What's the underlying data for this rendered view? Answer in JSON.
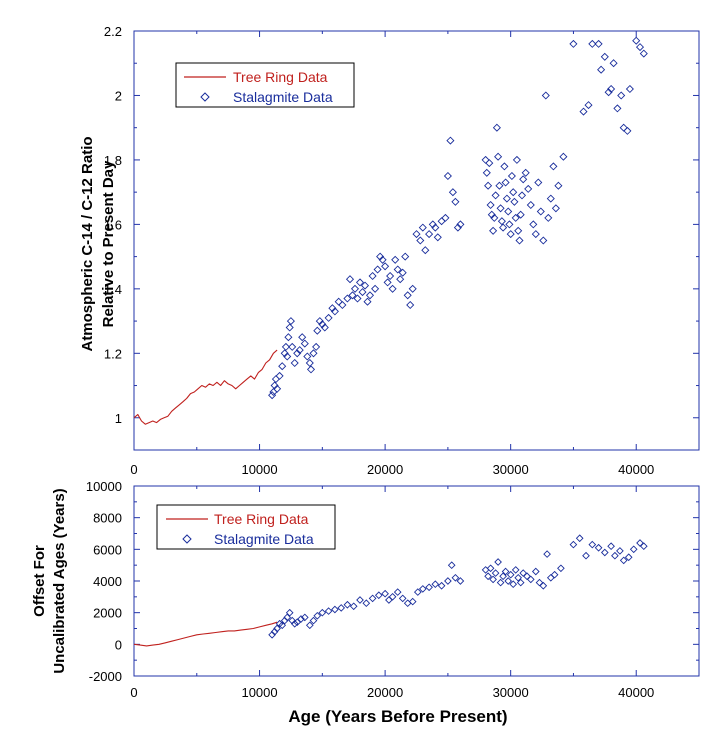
{
  "colors": {
    "tree": "#c0211e",
    "stalagmite": "#1a2e9c",
    "frame": "#2233aa",
    "tick_text": "#000000"
  },
  "chart_data": [
    {
      "type": "scatter",
      "title": "",
      "xlabel": "",
      "ylabel": "Atmospheric C-14 / C-12 Ratio",
      "ylabel2": "Relative to Present Day",
      "xlim": [
        0,
        45000
      ],
      "ylim": [
        0.9,
        2.2
      ],
      "xticks": [
        0,
        10000,
        20000,
        30000,
        40000
      ],
      "yticks": [
        1,
        1.2,
        1.4,
        1.6,
        1.8,
        2,
        2.2
      ],
      "ytick_labels": [
        "1",
        "1.2",
        "1.4",
        "1.6",
        "1.8",
        "2",
        "2.2"
      ],
      "grid": false,
      "legend_position": "top-left",
      "legend": [
        "Tree Ring Data",
        "Stalagmite Data"
      ],
      "series": [
        {
          "name": "Tree Ring Data",
          "kind": "line",
          "x": [
            0,
            300,
            600,
            900,
            1200,
            1500,
            1800,
            2100,
            2400,
            2700,
            3000,
            3300,
            3600,
            3900,
            4200,
            4500,
            4800,
            5100,
            5400,
            5700,
            6000,
            6300,
            6600,
            6900,
            7200,
            7500,
            7800,
            8100,
            8400,
            8700,
            9000,
            9300,
            9600,
            9900,
            10200,
            10500,
            10800,
            11100,
            11400
          ],
          "y": [
            1.0,
            1.01,
            0.99,
            0.98,
            0.985,
            0.99,
            0.985,
            0.995,
            1.0,
            1.005,
            1.02,
            1.03,
            1.04,
            1.05,
            1.06,
            1.075,
            1.08,
            1.09,
            1.1,
            1.095,
            1.105,
            1.1,
            1.11,
            1.1,
            1.115,
            1.105,
            1.1,
            1.09,
            1.1,
            1.11,
            1.12,
            1.13,
            1.12,
            1.14,
            1.15,
            1.17,
            1.18,
            1.2,
            1.21
          ]
        },
        {
          "name": "Stalagmite Data",
          "kind": "scatter",
          "points": [
            [
              11000,
              1.07
            ],
            [
              11100,
              1.08
            ],
            [
              11200,
              1.1
            ],
            [
              11300,
              1.12
            ],
            [
              11400,
              1.09
            ],
            [
              11600,
              1.13
            ],
            [
              11800,
              1.16
            ],
            [
              12000,
              1.2
            ],
            [
              12100,
              1.22
            ],
            [
              12200,
              1.19
            ],
            [
              12300,
              1.25
            ],
            [
              12400,
              1.28
            ],
            [
              12500,
              1.3
            ],
            [
              12600,
              1.22
            ],
            [
              12800,
              1.17
            ],
            [
              13000,
              1.2
            ],
            [
              13200,
              1.21
            ],
            [
              13400,
              1.25
            ],
            [
              13600,
              1.23
            ],
            [
              13800,
              1.19
            ],
            [
              14000,
              1.17
            ],
            [
              14100,
              1.15
            ],
            [
              14300,
              1.2
            ],
            [
              14500,
              1.22
            ],
            [
              14600,
              1.27
            ],
            [
              14800,
              1.3
            ],
            [
              15000,
              1.29
            ],
            [
              15200,
              1.28
            ],
            [
              15500,
              1.31
            ],
            [
              15800,
              1.34
            ],
            [
              16000,
              1.33
            ],
            [
              16300,
              1.36
            ],
            [
              16600,
              1.35
            ],
            [
              17000,
              1.37
            ],
            [
              17200,
              1.43
            ],
            [
              17400,
              1.38
            ],
            [
              17600,
              1.4
            ],
            [
              17800,
              1.37
            ],
            [
              18000,
              1.42
            ],
            [
              18200,
              1.39
            ],
            [
              18400,
              1.41
            ],
            [
              18600,
              1.36
            ],
            [
              18800,
              1.38
            ],
            [
              19000,
              1.44
            ],
            [
              19200,
              1.4
            ],
            [
              19400,
              1.46
            ],
            [
              19600,
              1.5
            ],
            [
              19800,
              1.49
            ],
            [
              20000,
              1.47
            ],
            [
              20200,
              1.42
            ],
            [
              20400,
              1.44
            ],
            [
              20600,
              1.4
            ],
            [
              20800,
              1.49
            ],
            [
              21000,
              1.46
            ],
            [
              21200,
              1.43
            ],
            [
              21400,
              1.45
            ],
            [
              21600,
              1.5
            ],
            [
              21800,
              1.38
            ],
            [
              22000,
              1.35
            ],
            [
              22200,
              1.4
            ],
            [
              22500,
              1.57
            ],
            [
              22800,
              1.55
            ],
            [
              23000,
              1.59
            ],
            [
              23200,
              1.52
            ],
            [
              23500,
              1.57
            ],
            [
              23800,
              1.6
            ],
            [
              24000,
              1.59
            ],
            [
              24200,
              1.56
            ],
            [
              24500,
              1.61
            ],
            [
              24800,
              1.62
            ],
            [
              25000,
              1.75
            ],
            [
              25200,
              1.86
            ],
            [
              25400,
              1.7
            ],
            [
              25600,
              1.67
            ],
            [
              25800,
              1.59
            ],
            [
              26000,
              1.6
            ],
            [
              28000,
              1.8
            ],
            [
              28100,
              1.76
            ],
            [
              28200,
              1.72
            ],
            [
              28300,
              1.79
            ],
            [
              28400,
              1.66
            ],
            [
              28500,
              1.63
            ],
            [
              28600,
              1.58
            ],
            [
              28700,
              1.62
            ],
            [
              28800,
              1.69
            ],
            [
              28900,
              1.9
            ],
            [
              29000,
              1.81
            ],
            [
              29100,
              1.72
            ],
            [
              29200,
              1.65
            ],
            [
              29300,
              1.61
            ],
            [
              29400,
              1.59
            ],
            [
              29500,
              1.78
            ],
            [
              29600,
              1.73
            ],
            [
              29700,
              1.68
            ],
            [
              29800,
              1.64
            ],
            [
              29900,
              1.6
            ],
            [
              30000,
              1.57
            ],
            [
              30100,
              1.75
            ],
            [
              30200,
              1.7
            ],
            [
              30300,
              1.67
            ],
            [
              30400,
              1.62
            ],
            [
              30500,
              1.8
            ],
            [
              30600,
              1.58
            ],
            [
              30700,
              1.55
            ],
            [
              30800,
              1.63
            ],
            [
              30900,
              1.69
            ],
            [
              31000,
              1.74
            ],
            [
              31200,
              1.76
            ],
            [
              31400,
              1.71
            ],
            [
              31600,
              1.66
            ],
            [
              31800,
              1.6
            ],
            [
              32000,
              1.57
            ],
            [
              32200,
              1.73
            ],
            [
              32400,
              1.64
            ],
            [
              32600,
              1.55
            ],
            [
              32800,
              2.0
            ],
            [
              33000,
              1.62
            ],
            [
              33200,
              1.68
            ],
            [
              33400,
              1.78
            ],
            [
              33600,
              1.65
            ],
            [
              33800,
              1.72
            ],
            [
              34200,
              1.81
            ],
            [
              35000,
              2.16
            ],
            [
              35800,
              1.95
            ],
            [
              36200,
              1.97
            ],
            [
              36500,
              2.16
            ],
            [
              37000,
              2.16
            ],
            [
              37200,
              2.08
            ],
            [
              37500,
              2.12
            ],
            [
              37800,
              2.01
            ],
            [
              38000,
              2.02
            ],
            [
              38200,
              2.1
            ],
            [
              38500,
              1.96
            ],
            [
              38800,
              2.0
            ],
            [
              39000,
              1.9
            ],
            [
              39300,
              1.89
            ],
            [
              39500,
              2.02
            ],
            [
              40000,
              2.17
            ],
            [
              40300,
              2.15
            ],
            [
              40600,
              2.13
            ]
          ]
        }
      ]
    },
    {
      "type": "scatter",
      "title": "",
      "xlabel": "Age (Years Before Present)",
      "ylabel": "Offset For",
      "ylabel2": "Uncalibrated Ages (Years)",
      "xlim": [
        0,
        45000
      ],
      "ylim": [
        -2000,
        10000
      ],
      "xticks": [
        0,
        10000,
        20000,
        30000,
        40000
      ],
      "yticks": [
        -2000,
        0,
        2000,
        4000,
        6000,
        8000,
        10000
      ],
      "grid": false,
      "legend_position": "top-left",
      "legend": [
        "Tree Ring Data",
        "Stalagmite Data"
      ],
      "series": [
        {
          "name": "Tree Ring Data",
          "kind": "line",
          "x": [
            0,
            500,
            1000,
            1500,
            2000,
            2500,
            3000,
            3500,
            4000,
            4500,
            5000,
            5500,
            6000,
            6500,
            7000,
            7500,
            8000,
            8500,
            9000,
            9500,
            10000,
            10500,
            11000,
            11400
          ],
          "y": [
            0,
            -50,
            -100,
            -50,
            0,
            100,
            200,
            300,
            400,
            500,
            600,
            650,
            700,
            750,
            800,
            850,
            850,
            900,
            950,
            1000,
            1100,
            1200,
            1300,
            1400
          ]
        },
        {
          "name": "Stalagmite Data",
          "kind": "scatter",
          "points": [
            [
              11000,
              600
            ],
            [
              11200,
              800
            ],
            [
              11400,
              1000
            ],
            [
              11600,
              1300
            ],
            [
              11800,
              1200
            ],
            [
              12000,
              1500
            ],
            [
              12200,
              1700
            ],
            [
              12400,
              2000
            ],
            [
              12600,
              1500
            ],
            [
              12800,
              1300
            ],
            [
              13000,
              1400
            ],
            [
              13300,
              1600
            ],
            [
              13600,
              1700
            ],
            [
              14000,
              1200
            ],
            [
              14300,
              1500
            ],
            [
              14600,
              1800
            ],
            [
              15000,
              2000
            ],
            [
              15500,
              2100
            ],
            [
              16000,
              2200
            ],
            [
              16500,
              2300
            ],
            [
              17000,
              2500
            ],
            [
              17500,
              2400
            ],
            [
              18000,
              2800
            ],
            [
              18500,
              2600
            ],
            [
              19000,
              2900
            ],
            [
              19500,
              3100
            ],
            [
              20000,
              3200
            ],
            [
              20300,
              2800
            ],
            [
              20600,
              3000
            ],
            [
              21000,
              3300
            ],
            [
              21400,
              2900
            ],
            [
              21800,
              2600
            ],
            [
              22200,
              2700
            ],
            [
              22600,
              3300
            ],
            [
              23000,
              3500
            ],
            [
              23500,
              3600
            ],
            [
              24000,
              3800
            ],
            [
              24500,
              3700
            ],
            [
              25000,
              4000
            ],
            [
              25300,
              5000
            ],
            [
              25600,
              4200
            ],
            [
              26000,
              4000
            ],
            [
              28000,
              4700
            ],
            [
              28200,
              4300
            ],
            [
              28400,
              4800
            ],
            [
              28600,
              4100
            ],
            [
              28800,
              4500
            ],
            [
              29000,
              5200
            ],
            [
              29200,
              3900
            ],
            [
              29400,
              4300
            ],
            [
              29600,
              4600
            ],
            [
              29800,
              4000
            ],
            [
              30000,
              4400
            ],
            [
              30200,
              3800
            ],
            [
              30400,
              4700
            ],
            [
              30600,
              4200
            ],
            [
              30800,
              3900
            ],
            [
              31000,
              4500
            ],
            [
              31300,
              4300
            ],
            [
              31600,
              4100
            ],
            [
              32000,
              4600
            ],
            [
              32300,
              3900
            ],
            [
              32600,
              3700
            ],
            [
              32900,
              5700
            ],
            [
              33200,
              4200
            ],
            [
              33500,
              4400
            ],
            [
              34000,
              4800
            ],
            [
              35000,
              6300
            ],
            [
              35500,
              6700
            ],
            [
              36000,
              5600
            ],
            [
              36500,
              6300
            ],
            [
              37000,
              6100
            ],
            [
              37500,
              5800
            ],
            [
              38000,
              6200
            ],
            [
              38300,
              5600
            ],
            [
              38700,
              5900
            ],
            [
              39000,
              5300
            ],
            [
              39400,
              5500
            ],
            [
              39800,
              6000
            ],
            [
              40300,
              6400
            ],
            [
              40600,
              6200
            ]
          ]
        }
      ]
    }
  ]
}
